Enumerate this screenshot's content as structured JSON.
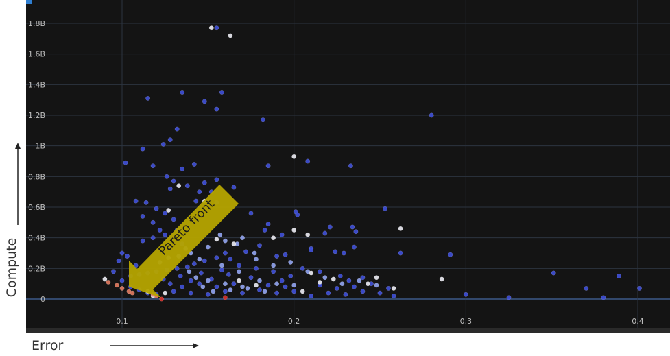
{
  "chart_data": {
    "type": "scatter",
    "title": "",
    "xlabel": "Error",
    "ylabel": "Compute",
    "xlim": [
      0.05,
      0.42
    ],
    "ylim": [
      -0.05,
      1.85
    ],
    "x_ticks": [
      0.1,
      0.2,
      0.3,
      0.4
    ],
    "x_tick_labels": [
      "0.1",
      "0.2",
      "0.3",
      "0.4"
    ],
    "y_ticks": [
      0,
      0.2,
      0.4,
      0.6,
      0.8,
      1.0,
      1.2,
      1.4,
      1.6,
      1.8
    ],
    "y_tick_labels": [
      "0",
      "0.2B",
      "0.4B",
      "0.6B",
      "0.8B",
      "1B",
      "1.2B",
      "1.4B",
      "1.6B",
      "1.8B"
    ],
    "y_unit": "B",
    "grid": true,
    "annotation": {
      "text": "Pareto front",
      "color": "#b5a400"
    },
    "colors": {
      "background": "#141414",
      "blue": "#3f4fd6",
      "light_blue": "#8fa2ee",
      "white": "#e8e8f0",
      "orange": "#e07a5f",
      "red": "#d6312a"
    },
    "series": [
      {
        "color_key": "blue",
        "points": [
          [
            0.155,
            1.77
          ],
          [
            0.135,
            1.35
          ],
          [
            0.158,
            1.35
          ],
          [
            0.115,
            1.31
          ],
          [
            0.148,
            1.29
          ],
          [
            0.155,
            1.24
          ],
          [
            0.182,
            1.17
          ],
          [
            0.28,
            1.2
          ],
          [
            0.132,
            1.11
          ],
          [
            0.128,
            1.04
          ],
          [
            0.112,
            0.98
          ],
          [
            0.124,
            1.01
          ],
          [
            0.102,
            0.89
          ],
          [
            0.208,
            0.9
          ],
          [
            0.233,
            0.87
          ],
          [
            0.185,
            0.87
          ],
          [
            0.118,
            0.87
          ],
          [
            0.126,
            0.8
          ],
          [
            0.142,
            0.88
          ],
          [
            0.155,
            0.78
          ],
          [
            0.135,
            0.85
          ],
          [
            0.148,
            0.76
          ],
          [
            0.13,
            0.77
          ],
          [
            0.152,
            0.7
          ],
          [
            0.165,
            0.73
          ],
          [
            0.138,
            0.74
          ],
          [
            0.143,
            0.64
          ],
          [
            0.155,
            0.63
          ],
          [
            0.145,
            0.7
          ],
          [
            0.128,
            0.72
          ],
          [
            0.108,
            0.64
          ],
          [
            0.114,
            0.63
          ],
          [
            0.12,
            0.59
          ],
          [
            0.125,
            0.56
          ],
          [
            0.13,
            0.52
          ],
          [
            0.112,
            0.54
          ],
          [
            0.118,
            0.5
          ],
          [
            0.122,
            0.45
          ],
          [
            0.132,
            0.45
          ],
          [
            0.125,
            0.42
          ],
          [
            0.118,
            0.4
          ],
          [
            0.112,
            0.38
          ],
          [
            0.135,
            0.36
          ],
          [
            0.128,
            0.35
          ],
          [
            0.175,
            0.56
          ],
          [
            0.185,
            0.49
          ],
          [
            0.183,
            0.45
          ],
          [
            0.193,
            0.42
          ],
          [
            0.201,
            0.57
          ],
          [
            0.202,
            0.55
          ],
          [
            0.221,
            0.47
          ],
          [
            0.218,
            0.43
          ],
          [
            0.234,
            0.47
          ],
          [
            0.236,
            0.44
          ],
          [
            0.253,
            0.59
          ],
          [
            0.262,
            0.3
          ],
          [
            0.291,
            0.29
          ],
          [
            0.235,
            0.34
          ],
          [
            0.229,
            0.3
          ],
          [
            0.224,
            0.31
          ],
          [
            0.21,
            0.33
          ],
          [
            0.21,
            0.32
          ],
          [
            0.195,
            0.29
          ],
          [
            0.19,
            0.28
          ],
          [
            0.18,
            0.35
          ],
          [
            0.172,
            0.31
          ],
          [
            0.16,
            0.3
          ],
          [
            0.163,
            0.26
          ],
          [
            0.155,
            0.27
          ],
          [
            0.148,
            0.25
          ],
          [
            0.142,
            0.23
          ],
          [
            0.138,
            0.21
          ],
          [
            0.132,
            0.2
          ],
          [
            0.126,
            0.19
          ],
          [
            0.12,
            0.18
          ],
          [
            0.115,
            0.17
          ],
          [
            0.11,
            0.16
          ],
          [
            0.105,
            0.15
          ],
          [
            0.1,
            0.3
          ],
          [
            0.098,
            0.25
          ],
          [
            0.095,
            0.18
          ],
          [
            0.103,
            0.28
          ],
          [
            0.108,
            0.22
          ],
          [
            0.1,
            0.12
          ],
          [
            0.105,
            0.08
          ],
          [
            0.11,
            0.06
          ],
          [
            0.115,
            0.04
          ],
          [
            0.12,
            0.03
          ],
          [
            0.13,
            0.05
          ],
          [
            0.14,
            0.04
          ],
          [
            0.15,
            0.03
          ],
          [
            0.16,
            0.05
          ],
          [
            0.17,
            0.04
          ],
          [
            0.18,
            0.06
          ],
          [
            0.19,
            0.04
          ],
          [
            0.2,
            0.05
          ],
          [
            0.21,
            0.02
          ],
          [
            0.22,
            0.04
          ],
          [
            0.23,
            0.03
          ],
          [
            0.24,
            0.05
          ],
          [
            0.25,
            0.04
          ],
          [
            0.258,
            0.02
          ],
          [
            0.3,
            0.03
          ],
          [
            0.325,
            0.01
          ],
          [
            0.351,
            0.17
          ],
          [
            0.37,
            0.07
          ],
          [
            0.38,
            0.01
          ],
          [
            0.389,
            0.15
          ],
          [
            0.401,
            0.07
          ],
          [
            0.245,
            0.1
          ],
          [
            0.24,
            0.14
          ],
          [
            0.232,
            0.12
          ],
          [
            0.227,
            0.15
          ],
          [
            0.215,
            0.18
          ],
          [
            0.205,
            0.2
          ],
          [
            0.198,
            0.15
          ],
          [
            0.193,
            0.12
          ],
          [
            0.188,
            0.18
          ],
          [
            0.178,
            0.2
          ],
          [
            0.175,
            0.14
          ],
          [
            0.168,
            0.22
          ],
          [
            0.162,
            0.16
          ],
          [
            0.158,
            0.19
          ],
          [
            0.152,
            0.13
          ],
          [
            0.146,
            0.17
          ],
          [
            0.14,
            0.12
          ],
          [
            0.134,
            0.15
          ],
          [
            0.128,
            0.1
          ],
          [
            0.124,
            0.13
          ],
          [
            0.135,
            0.08
          ],
          [
            0.145,
            0.1
          ],
          [
            0.155,
            0.08
          ],
          [
            0.165,
            0.1
          ],
          [
            0.185,
            0.09
          ],
          [
            0.195,
            0.08
          ],
          [
            0.215,
            0.09
          ],
          [
            0.225,
            0.07
          ],
          [
            0.235,
            0.08
          ],
          [
            0.255,
            0.07
          ]
        ]
      },
      {
        "color_key": "light_blue",
        "points": [
          [
            0.14,
            0.3
          ],
          [
            0.15,
            0.34
          ],
          [
            0.16,
            0.38
          ],
          [
            0.17,
            0.4
          ],
          [
            0.145,
            0.26
          ],
          [
            0.158,
            0.22
          ],
          [
            0.168,
            0.18
          ],
          [
            0.178,
            0.26
          ],
          [
            0.188,
            0.22
          ],
          [
            0.198,
            0.24
          ],
          [
            0.208,
            0.18
          ],
          [
            0.218,
            0.14
          ],
          [
            0.228,
            0.1
          ],
          [
            0.238,
            0.12
          ],
          [
            0.248,
            0.09
          ],
          [
            0.15,
            0.12
          ],
          [
            0.16,
            0.1
          ],
          [
            0.17,
            0.08
          ],
          [
            0.18,
            0.12
          ],
          [
            0.19,
            0.1
          ],
          [
            0.2,
            0.09
          ],
          [
            0.133,
            0.28
          ],
          [
            0.139,
            0.18
          ],
          [
            0.143,
            0.14
          ],
          [
            0.147,
            0.08
          ],
          [
            0.153,
            0.05
          ],
          [
            0.163,
            0.06
          ],
          [
            0.173,
            0.07
          ],
          [
            0.183,
            0.05
          ],
          [
            0.122,
            0.24
          ],
          [
            0.127,
            0.27
          ],
          [
            0.137,
            0.33
          ],
          [
            0.157,
            0.42
          ],
          [
            0.167,
            0.36
          ],
          [
            0.177,
            0.3
          ]
        ]
      },
      {
        "color_key": "white",
        "points": [
          [
            0.152,
            1.77
          ],
          [
            0.163,
            1.72
          ],
          [
            0.2,
            0.93
          ],
          [
            0.133,
            0.74
          ],
          [
            0.127,
            0.58
          ],
          [
            0.148,
            0.64
          ],
          [
            0.262,
            0.46
          ],
          [
            0.208,
            0.42
          ],
          [
            0.188,
            0.4
          ],
          [
            0.2,
            0.45
          ],
          [
            0.165,
            0.36
          ],
          [
            0.155,
            0.39
          ],
          [
            0.286,
            0.13
          ],
          [
            0.248,
            0.14
          ],
          [
            0.243,
            0.1
          ],
          [
            0.21,
            0.17
          ],
          [
            0.215,
            0.11
          ],
          [
            0.223,
            0.13
          ],
          [
            0.258,
            0.07
          ],
          [
            0.178,
            0.09
          ],
          [
            0.168,
            0.12
          ],
          [
            0.205,
            0.05
          ],
          [
            0.115,
            0.05
          ],
          [
            0.118,
            0.02
          ],
          [
            0.125,
            0.04
          ],
          [
            0.09,
            0.13
          ]
        ]
      },
      {
        "color_key": "orange",
        "points": [
          [
            0.092,
            0.11
          ],
          [
            0.097,
            0.09
          ],
          [
            0.1,
            0.07
          ],
          [
            0.104,
            0.05
          ],
          [
            0.106,
            0.04
          ],
          [
            0.118,
            0.03
          ],
          [
            0.12,
            0.02
          ]
        ]
      },
      {
        "color_key": "red",
        "points": [
          [
            0.16,
            0.01
          ],
          [
            0.123,
            0.0
          ]
        ]
      }
    ]
  }
}
